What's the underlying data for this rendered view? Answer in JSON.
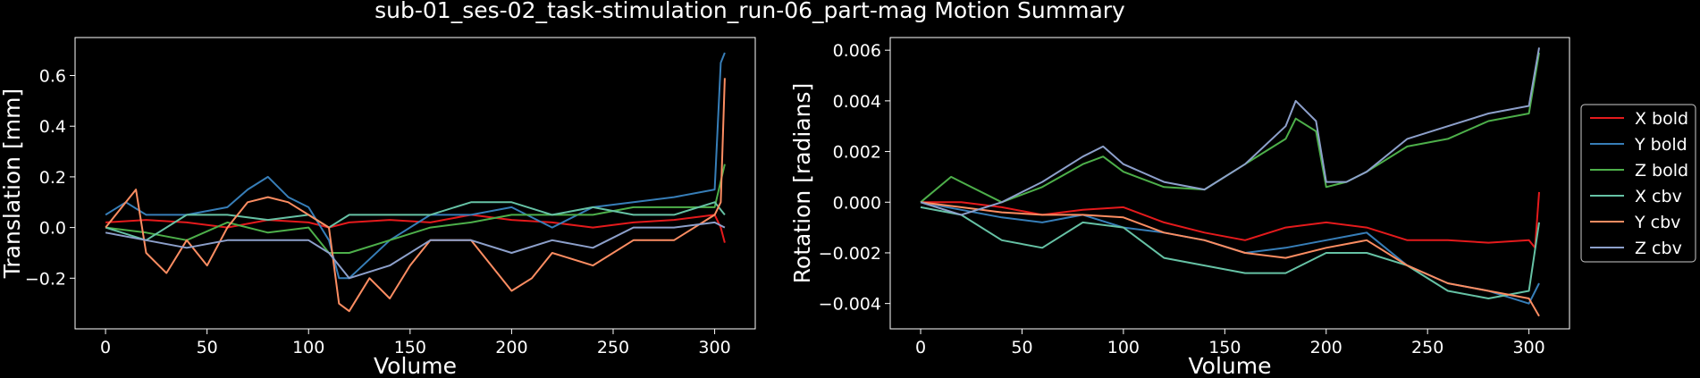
{
  "title": "sub-01_ses-02_task-stimulation_run-06_part-mag Motion Summary",
  "colors": {
    "background": "#000000",
    "axes": "#ffffff",
    "X bold": "#e41a1c",
    "Y bold": "#377eb8",
    "Z bold": "#4daf4a",
    "X cbv": "#66c2a5",
    "Y cbv": "#fc8d62",
    "Z cbv": "#8da0cb"
  },
  "legend": {
    "placement": "right, outside",
    "entries": [
      "X bold",
      "Y bold",
      "Z bold",
      "X cbv",
      "Y cbv",
      "Z cbv"
    ]
  },
  "chart_data": [
    {
      "type": "line",
      "xlabel": "Volume",
      "ylabel": "Translation [mm]",
      "xlim": [
        -15,
        320
      ],
      "ylim": [
        -0.4,
        0.75
      ],
      "xticks": [
        0,
        50,
        100,
        150,
        200,
        250,
        300
      ],
      "xtick_labels": [
        "0",
        "50",
        "100",
        "150",
        "200",
        "250",
        "300"
      ],
      "yticks": [
        -0.2,
        0.0,
        0.2,
        0.4,
        0.6
      ],
      "ytick_labels": [
        "−0.2",
        "0.0",
        "0.2",
        "0.4",
        "0.6"
      ],
      "grid": false,
      "series": [
        {
          "name": "X bold",
          "x": [
            0,
            20,
            40,
            60,
            80,
            100,
            110,
            120,
            140,
            160,
            180,
            200,
            220,
            240,
            260,
            280,
            300,
            303,
            305
          ],
          "y": [
            0.02,
            0.03,
            0.02,
            0.0,
            0.03,
            0.02,
            0.0,
            0.02,
            0.03,
            0.02,
            0.05,
            0.03,
            0.02,
            0.0,
            0.02,
            0.03,
            0.05,
            0.0,
            -0.06
          ]
        },
        {
          "name": "Y bold",
          "x": [
            0,
            10,
            20,
            40,
            60,
            70,
            80,
            90,
            100,
            110,
            115,
            120,
            140,
            160,
            180,
            200,
            220,
            240,
            260,
            280,
            300,
            303,
            305
          ],
          "y": [
            0.05,
            0.1,
            0.05,
            0.05,
            0.08,
            0.15,
            0.2,
            0.12,
            0.08,
            -0.05,
            -0.2,
            -0.2,
            -0.05,
            0.05,
            0.05,
            0.08,
            0.0,
            0.08,
            0.1,
            0.12,
            0.15,
            0.65,
            0.69
          ]
        },
        {
          "name": "Z bold",
          "x": [
            0,
            20,
            40,
            60,
            80,
            100,
            110,
            120,
            140,
            160,
            180,
            200,
            220,
            240,
            260,
            280,
            300,
            305
          ],
          "y": [
            0.0,
            -0.02,
            -0.05,
            0.02,
            -0.02,
            0.0,
            -0.1,
            -0.1,
            -0.05,
            0.0,
            0.02,
            0.05,
            0.05,
            0.05,
            0.08,
            0.08,
            0.08,
            0.25
          ]
        },
        {
          "name": "X cbv",
          "x": [
            0,
            20,
            40,
            60,
            80,
            100,
            110,
            120,
            140,
            160,
            180,
            200,
            220,
            240,
            260,
            280,
            300,
            305
          ],
          "y": [
            0.0,
            -0.05,
            0.05,
            0.05,
            0.03,
            0.05,
            0.0,
            0.05,
            0.05,
            0.05,
            0.1,
            0.1,
            0.05,
            0.08,
            0.05,
            0.05,
            0.1,
            0.05
          ]
        },
        {
          "name": "Y cbv",
          "x": [
            0,
            10,
            15,
            20,
            30,
            40,
            50,
            60,
            70,
            80,
            90,
            100,
            110,
            115,
            120,
            130,
            140,
            150,
            160,
            180,
            200,
            210,
            220,
            240,
            260,
            280,
            300,
            303,
            305
          ],
          "y": [
            0.0,
            0.1,
            0.15,
            -0.1,
            -0.18,
            -0.05,
            -0.15,
            0.0,
            0.1,
            0.12,
            0.1,
            0.05,
            0.0,
            -0.3,
            -0.33,
            -0.2,
            -0.28,
            -0.15,
            -0.05,
            -0.05,
            -0.25,
            -0.2,
            -0.1,
            -0.15,
            -0.05,
            -0.05,
            0.05,
            0.1,
            0.59
          ]
        },
        {
          "name": "Z cbv",
          "x": [
            0,
            20,
            40,
            60,
            80,
            100,
            110,
            120,
            140,
            160,
            180,
            200,
            220,
            240,
            260,
            280,
            300,
            305
          ],
          "y": [
            -0.02,
            -0.05,
            -0.08,
            -0.05,
            -0.05,
            -0.05,
            -0.1,
            -0.2,
            -0.15,
            -0.05,
            -0.05,
            -0.1,
            -0.05,
            -0.08,
            0.0,
            0.0,
            0.02,
            0.0
          ]
        }
      ]
    },
    {
      "type": "line",
      "xlabel": "Volume",
      "ylabel": "Rotation [radians]",
      "xlim": [
        -15,
        320
      ],
      "ylim": [
        -0.005,
        0.0065
      ],
      "xticks": [
        0,
        50,
        100,
        150,
        200,
        250,
        300
      ],
      "xtick_labels": [
        "0",
        "50",
        "100",
        "150",
        "200",
        "250",
        "300"
      ],
      "yticks": [
        -0.004,
        -0.002,
        0.0,
        0.002,
        0.004,
        0.006
      ],
      "ytick_labels": [
        "−0.004",
        "−0.002",
        "0.000",
        "0.002",
        "0.004",
        "0.006"
      ],
      "grid": false,
      "series": [
        {
          "name": "X bold",
          "x": [
            0,
            20,
            40,
            60,
            80,
            100,
            120,
            140,
            160,
            180,
            200,
            220,
            240,
            260,
            280,
            300,
            303,
            305
          ],
          "y": [
            0.0,
            0.0,
            -0.0002,
            -0.0005,
            -0.0003,
            -0.0002,
            -0.0008,
            -0.0012,
            -0.0015,
            -0.001,
            -0.0008,
            -0.001,
            -0.0015,
            -0.0015,
            -0.0016,
            -0.0015,
            -0.0018,
            0.0004
          ]
        },
        {
          "name": "Y bold",
          "x": [
            0,
            20,
            40,
            60,
            80,
            100,
            120,
            140,
            160,
            180,
            200,
            220,
            240,
            260,
            280,
            300,
            305
          ],
          "y": [
            0.0,
            -0.0003,
            -0.0006,
            -0.0008,
            -0.0005,
            -0.001,
            -0.0012,
            -0.0015,
            -0.002,
            -0.0018,
            -0.0015,
            -0.0012,
            -0.0025,
            -0.0032,
            -0.0035,
            -0.004,
            -0.0032
          ]
        },
        {
          "name": "Z bold",
          "x": [
            0,
            15,
            20,
            40,
            60,
            80,
            90,
            100,
            120,
            140,
            160,
            180,
            185,
            195,
            200,
            210,
            220,
            240,
            260,
            280,
            300,
            305
          ],
          "y": [
            0.0,
            0.001,
            0.0008,
            0.0,
            0.0006,
            0.0015,
            0.0018,
            0.0012,
            0.0006,
            0.0005,
            0.0015,
            0.0025,
            0.0033,
            0.0028,
            0.0006,
            0.0008,
            0.0012,
            0.0022,
            0.0025,
            0.0032,
            0.0035,
            0.0059
          ]
        },
        {
          "name": "X cbv",
          "x": [
            0,
            20,
            40,
            60,
            80,
            100,
            120,
            140,
            160,
            180,
            200,
            220,
            240,
            260,
            280,
            300,
            305
          ],
          "y": [
            -0.0002,
            -0.0005,
            -0.0015,
            -0.0018,
            -0.0008,
            -0.001,
            -0.0022,
            -0.0025,
            -0.0028,
            -0.0028,
            -0.002,
            -0.002,
            -0.0025,
            -0.0035,
            -0.0038,
            -0.0035,
            -0.0008
          ]
        },
        {
          "name": "Y cbv",
          "x": [
            0,
            20,
            40,
            60,
            80,
            100,
            120,
            140,
            160,
            180,
            200,
            220,
            240,
            260,
            280,
            300,
            305
          ],
          "y": [
            0.0,
            -0.0002,
            -0.0004,
            -0.0005,
            -0.0005,
            -0.0006,
            -0.0012,
            -0.0015,
            -0.002,
            -0.0022,
            -0.0018,
            -0.0015,
            -0.0025,
            -0.0032,
            -0.0035,
            -0.0038,
            -0.0045
          ]
        },
        {
          "name": "Z cbv",
          "x": [
            0,
            20,
            40,
            60,
            80,
            90,
            100,
            120,
            140,
            160,
            180,
            185,
            195,
            200,
            210,
            220,
            240,
            260,
            280,
            300,
            305
          ],
          "y": [
            0.0,
            -0.0005,
            0.0,
            0.0008,
            0.0018,
            0.0022,
            0.0015,
            0.0008,
            0.0005,
            0.0015,
            0.003,
            0.004,
            0.0032,
            0.0008,
            0.0008,
            0.0012,
            0.0025,
            0.003,
            0.0035,
            0.0038,
            0.0061
          ]
        }
      ]
    }
  ]
}
